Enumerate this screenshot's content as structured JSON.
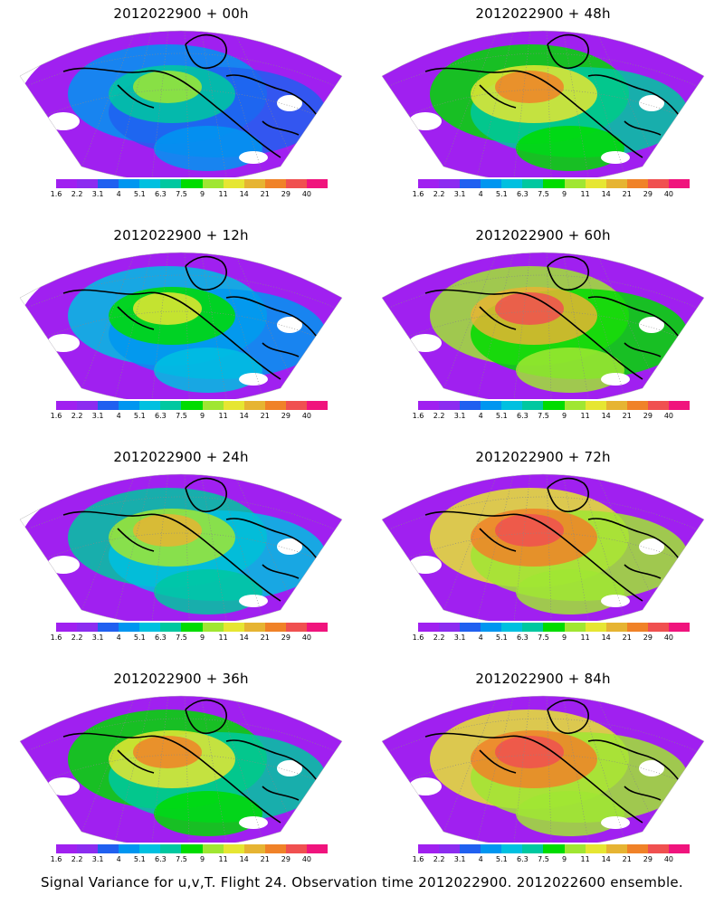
{
  "colorbar": {
    "labels": [
      "1.6",
      "2.2",
      "3.1",
      "4",
      "5.1",
      "6.3",
      "7.5",
      "9",
      "11",
      "14",
      "21",
      "29",
      "40"
    ],
    "colors": [
      "#a020f0",
      "#8c2cf0",
      "#2060f0",
      "#0096f0",
      "#00c0e0",
      "#00c8a0",
      "#00dc00",
      "#a0e632",
      "#e6e632",
      "#e6b432",
      "#f08228",
      "#f05050",
      "#f0147d"
    ]
  },
  "panels": [
    {
      "title": "2012022900 + 00h"
    },
    {
      "title": "2012022900 + 48h"
    },
    {
      "title": "2012022900 + 12h"
    },
    {
      "title": "2012022900 + 60h"
    },
    {
      "title": "2012022900 + 24h"
    },
    {
      "title": "2012022900 + 72h"
    },
    {
      "title": "2012022900 + 36h"
    },
    {
      "title": "2012022900 + 84h"
    }
  ],
  "footer": "Signal Variance for u,v,T. Flight 24. Observation time 2012022900. 2012022600 ensemble."
}
